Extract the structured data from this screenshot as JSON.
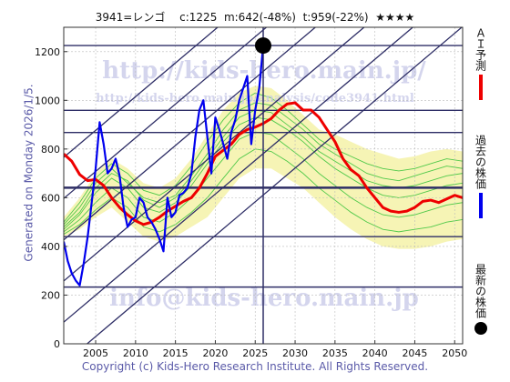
{
  "header": {
    "title": "3941=レンゴ　 c:1225  m:642(-48%)  t:959(-22%)  ★★★★"
  },
  "side_note": "Generated on Monday 2026/1/5.",
  "footer": {
    "copyright": "Copyright (c) Kids-Hero Research Institute. All Rights Reserved."
  },
  "watermarks": {
    "url": "http://kids-hero.main.jp/",
    "url_small": "http://kids-hero.main.jp/analysis/code3941.html",
    "email": "info@kids-hero.main.jp"
  },
  "legend": {
    "ai_forecast": "ＡＩ予測",
    "past_price": "過去の株価",
    "latest_price": "最新の株価",
    "ai_color": "#ee0000",
    "past_color": "#0000ee",
    "latest_color": "#000000"
  },
  "chart_data": {
    "type": "line",
    "title": "3941=レンゴ　 c:1225  m:642(-48%)  t:959(-22%)  ★★★★",
    "xlabel": "",
    "ylabel": "",
    "xlim": [
      2001,
      2051
    ],
    "ylim": [
      0,
      1300
    ],
    "x_ticks": [
      2005,
      2010,
      2015,
      2020,
      2025,
      2030,
      2035,
      2040,
      2045,
      2050
    ],
    "y_ticks": [
      0,
      200,
      400,
      600,
      800,
      1000,
      1200
    ],
    "grid": true,
    "legend_position": "right",
    "latest": {
      "year": 2026.0,
      "price": 1225
    },
    "current_marker_year": 2026.0,
    "horizontal_levels": [
      1225,
      959,
      868,
      642,
      640,
      440,
      233
    ],
    "channel_lines": [
      {
        "x0": 2001,
        "y0": 258,
        "x1": 2051,
        "y1": 1642
      },
      {
        "x0": 2001,
        "y0": 89,
        "x1": 2051,
        "y1": 1473
      },
      {
        "x0": 2001,
        "y0": -81,
        "x1": 2051,
        "y1": 1303
      },
      {
        "x0": 2001,
        "y0": 427,
        "x1": 2051,
        "y1": 1811
      },
      {
        "x0": 2001,
        "y0": 597,
        "x1": 2051,
        "y1": 1981
      },
      {
        "x0": 2001,
        "y0": 766,
        "x1": 2051,
        "y1": 2150
      }
    ],
    "series": [
      {
        "name": "ＡＩ予測",
        "color": "#ee0000",
        "x": [
          2001.0,
          2002.0,
          2003.0,
          2004.0,
          2005.0,
          2006.0,
          2007.0,
          2008.0,
          2009.0,
          2010.0,
          2011.0,
          2012.0,
          2013.0,
          2014.0,
          2015.0,
          2016.0,
          2017.0,
          2018.0,
          2019.0,
          2020.0,
          2021.0,
          2022.0,
          2023.0,
          2024.0,
          2025.0,
          2026.0,
          2027.0,
          2028.0,
          2029.0,
          2030.0,
          2031.0,
          2032.0,
          2033.0,
          2034.0,
          2035.0,
          2036.0,
          2037.0,
          2038.0,
          2039.0,
          2040.0,
          2041.0,
          2042.0,
          2043.0,
          2044.0,
          2045.0,
          2046.0,
          2047.0,
          2048.0,
          2049.0,
          2050.0,
          2051.0
        ],
        "values": [
          780,
          750,
          695,
          670,
          675,
          650,
          600,
          560,
          530,
          505,
          490,
          500,
          520,
          545,
          565,
          585,
          600,
          640,
          700,
          770,
          795,
          820,
          860,
          880,
          890,
          905,
          925,
          960,
          985,
          990,
          960,
          960,
          930,
          880,
          830,
          760,
          715,
          690,
          640,
          600,
          560,
          545,
          540,
          545,
          560,
          585,
          590,
          580,
          595,
          610,
          600
        ]
      },
      {
        "name": "過去の株価",
        "color": "#0000ee",
        "x": [
          2001.0,
          2001.5,
          2002.0,
          2002.5,
          2003.0,
          2003.5,
          2004.0,
          2004.5,
          2005.0,
          2005.5,
          2006.0,
          2006.5,
          2007.0,
          2007.5,
          2008.0,
          2008.5,
          2009.0,
          2009.5,
          2010.0,
          2010.5,
          2011.0,
          2011.5,
          2012.0,
          2012.5,
          2013.0,
          2013.5,
          2014.0,
          2014.5,
          2015.0,
          2015.5,
          2016.0,
          2016.5,
          2017.0,
          2017.5,
          2018.0,
          2018.5,
          2019.0,
          2019.5,
          2020.0,
          2020.5,
          2021.0,
          2021.5,
          2022.0,
          2022.5,
          2023.0,
          2023.5,
          2024.0,
          2024.5,
          2025.0,
          2025.5,
          2026.0
        ],
        "values": [
          420,
          340,
          290,
          260,
          240,
          330,
          440,
          580,
          720,
          910,
          820,
          700,
          720,
          760,
          690,
          560,
          480,
          510,
          520,
          600,
          580,
          520,
          500,
          470,
          430,
          380,
          600,
          520,
          540,
          610,
          620,
          640,
          700,
          850,
          960,
          1000,
          850,
          700,
          930,
          880,
          820,
          760,
          870,
          920,
          1000,
          1050,
          1100,
          820,
          960,
          1050,
          1225
        ]
      }
    ],
    "scenario_fan": {
      "x": [
        2001,
        2003,
        2005,
        2007,
        2009,
        2011,
        2013,
        2015,
        2017,
        2019,
        2021,
        2023,
        2025,
        2027,
        2029,
        2031,
        2033,
        2035,
        2037,
        2039,
        2041,
        2043,
        2045,
        2047,
        2049,
        2051
      ],
      "upper": [
        520,
        600,
        700,
        760,
        720,
        660,
        640,
        680,
        760,
        860,
        960,
        1030,
        1060,
        1050,
        1000,
        940,
        880,
        860,
        830,
        800,
        780,
        760,
        770,
        790,
        800,
        790
      ],
      "lower": [
        440,
        470,
        520,
        560,
        500,
        440,
        420,
        440,
        480,
        520,
        600,
        680,
        720,
        720,
        680,
        640,
        580,
        520,
        470,
        430,
        400,
        390,
        390,
        400,
        420,
        430
      ],
      "lines": [
        [
          470,
          530,
          620,
          680,
          640,
          560,
          540,
          580,
          650,
          740,
          830,
          900,
          930,
          920,
          880,
          830,
          770,
          720,
          680,
          640,
          610,
          600,
          610,
          630,
          650,
          660
        ],
        [
          490,
          560,
          660,
          720,
          660,
          600,
          580,
          610,
          690,
          780,
          880,
          960,
          990,
          980,
          930,
          880,
          820,
          780,
          740,
          700,
          680,
          670,
          690,
          710,
          730,
          720
        ],
        [
          460,
          510,
          580,
          640,
          600,
          520,
          500,
          540,
          600,
          680,
          760,
          840,
          870,
          860,
          810,
          760,
          700,
          650,
          600,
          560,
          530,
          520,
          530,
          550,
          570,
          580
        ],
        [
          500,
          580,
          680,
          740,
          700,
          630,
          610,
          650,
          730,
          830,
          920,
          990,
          1030,
          1010,
          960,
          900,
          840,
          800,
          770,
          740,
          720,
          710,
          720,
          740,
          760,
          750
        ],
        [
          450,
          490,
          550,
          600,
          560,
          480,
          460,
          490,
          540,
          600,
          680,
          760,
          800,
          790,
          750,
          700,
          640,
          590,
          540,
          500,
          470,
          460,
          470,
          480,
          500,
          510
        ],
        [
          480,
          540,
          640,
          700,
          670,
          590,
          560,
          600,
          670,
          760,
          850,
          930,
          960,
          950,
          900,
          850,
          790,
          750,
          710,
          670,
          650,
          640,
          650,
          670,
          690,
          700
        ]
      ]
    }
  }
}
